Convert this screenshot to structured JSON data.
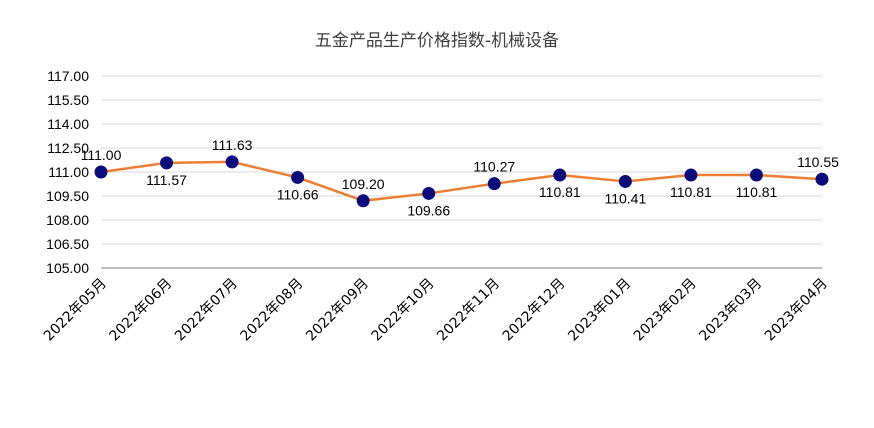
{
  "chart_data": {
    "type": "line",
    "title": "五金产品生产价格指数-机械设备",
    "xlabel": "",
    "ylabel": "",
    "categories": [
      "2022年05月",
      "2022年06月",
      "2022年07月",
      "2022年08月",
      "2022年09月",
      "2022年10月",
      "2022年11月",
      "2022年12月",
      "2023年01月",
      "2023年02月",
      "2023年03月",
      "2023年04月"
    ],
    "series": [
      {
        "values": [
          111.0,
          111.57,
          111.63,
          110.66,
          109.2,
          109.66,
          110.27,
          110.81,
          110.41,
          110.81,
          110.81,
          110.55
        ],
        "labels": [
          "111.00",
          "111.57",
          "111.63",
          "110.66",
          "109.20",
          "109.66",
          "110.27",
          "110.81",
          "110.41",
          "110.81",
          "110.81",
          "110.55"
        ]
      }
    ],
    "ylim": [
      105.0,
      117.0
    ],
    "yticks": [
      "105.00",
      "106.50",
      "108.00",
      "109.50",
      "111.00",
      "112.50",
      "114.00",
      "115.50",
      "117.00"
    ],
    "grid": true,
    "legend": "none",
    "colors": {
      "line": "#ED7D31",
      "marker": "#0B0B7A",
      "grid": "#D9D9D9",
      "axis": "#808080"
    }
  }
}
